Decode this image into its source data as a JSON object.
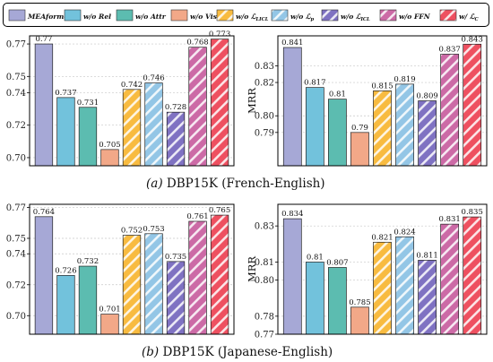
{
  "colors": {
    "MEAformer": "#a6a8d6",
    "w/o Rel": "#72c2dc",
    "w/o Attr": "#5cbcb0",
    "w/o Vis": "#f2a888",
    "w/o L_LICL": "#f8bb40",
    "w/o L_p": "#93c6e6",
    "w/o L_ICL": "#7f72c2",
    "w/o FFN": "#cc6aa6",
    "w/ L_C": "#ee5060"
  },
  "legend": {
    "items": [
      {
        "key": "MEAformer",
        "label": "MEAformer",
        "sub": "",
        "hatched": false
      },
      {
        "key": "w/o Rel",
        "label": "w/o Rel",
        "sub": "",
        "hatched": false
      },
      {
        "key": "w/o Attr",
        "label": "w/o Attr",
        "sub": "",
        "hatched": false
      },
      {
        "key": "w/o Vis",
        "label": "w/o Vis",
        "sub": "",
        "hatched": false
      },
      {
        "key": "w/o L_LICL",
        "label": "w/o ℒ",
        "sub": "LICL",
        "hatched": true
      },
      {
        "key": "w/o L_p",
        "label": "w/o ℒ",
        "sub": "p",
        "hatched": true
      },
      {
        "key": "w/o L_ICL",
        "label": "w/o ℒ",
        "sub": "ICL",
        "hatched": true
      },
      {
        "key": "w/o FFN",
        "label": "w/o FFN",
        "sub": "",
        "hatched": true
      },
      {
        "key": "w/ L_C",
        "label": "w/ ℒ",
        "sub": "C",
        "hatched": true
      }
    ]
  },
  "captions": {
    "a": {
      "label": "(a)",
      "text": "DBP15K (French-English)"
    },
    "b": {
      "label": "(b)",
      "text": "DBP15K (Japanese-English)"
    }
  },
  "chart_data": [
    {
      "type": "bar",
      "panel": "a-left",
      "ylabel": "",
      "ylim": [
        0.695,
        0.775
      ],
      "yticks": [
        0.7,
        0.72,
        0.74,
        0.75,
        0.77
      ],
      "categories": [
        "MEAformer",
        "w/o Rel",
        "w/o Attr",
        "w/o Vis",
        "w/o L_LICL",
        "w/o L_p",
        "w/o L_ICL",
        "w/o FFN",
        "w/ L_C"
      ],
      "values": [
        0.77,
        0.737,
        0.731,
        0.705,
        0.742,
        0.746,
        0.728,
        0.768,
        0.773
      ],
      "value_labels": [
        "0.77",
        "0.737",
        "0.731",
        "0.705",
        "0.742",
        "0.746",
        "0.728",
        "0.768",
        "0.773"
      ]
    },
    {
      "type": "bar",
      "panel": "a-right",
      "ylabel": "MRR",
      "ylim": [
        0.77,
        0.848
      ],
      "yticks": [
        0.79,
        0.8,
        0.82,
        0.83
      ],
      "categories": [
        "MEAformer",
        "w/o Rel",
        "w/o Attr",
        "w/o Vis",
        "w/o L_LICL",
        "w/o L_p",
        "w/o L_ICL",
        "w/o FFN",
        "w/ L_C"
      ],
      "values": [
        0.841,
        0.817,
        0.81,
        0.79,
        0.815,
        0.819,
        0.809,
        0.837,
        0.843
      ],
      "value_labels": [
        "0.841",
        "0.817",
        "0.81",
        "0.79",
        "0.815",
        "0.819",
        "0.809",
        "0.837",
        "0.843"
      ]
    },
    {
      "type": "bar",
      "panel": "b-left",
      "ylabel": "",
      "ylim": [
        0.688,
        0.772
      ],
      "yticks": [
        0.7,
        0.72,
        0.74,
        0.75,
        0.77
      ],
      "categories": [
        "MEAformer",
        "w/o Rel",
        "w/o Attr",
        "w/o Vis",
        "w/o L_LICL",
        "w/o L_p",
        "w/o L_ICL",
        "w/o FFN",
        "w/ L_C"
      ],
      "values": [
        0.764,
        0.726,
        0.732,
        0.701,
        0.752,
        0.753,
        0.735,
        0.761,
        0.765
      ],
      "value_labels": [
        "0.764",
        "0.726",
        "0.732",
        "0.701",
        "0.752",
        "0.753",
        "0.735",
        "0.761",
        "0.765"
      ]
    },
    {
      "type": "bar",
      "panel": "b-right",
      "ylabel": "MRR",
      "ylim": [
        0.77,
        0.842
      ],
      "yticks": [
        0.77,
        0.78,
        0.8,
        0.81,
        0.83
      ],
      "categories": [
        "MEAformer",
        "w/o Rel",
        "w/o Attr",
        "w/o Vis",
        "w/o L_LICL",
        "w/o L_p",
        "w/o L_ICL",
        "w/o FFN",
        "w/ L_C"
      ],
      "values": [
        0.834,
        0.81,
        0.807,
        0.785,
        0.821,
        0.824,
        0.811,
        0.831,
        0.835
      ],
      "value_labels": [
        "0.834",
        "0.81",
        "0.807",
        "0.785",
        "0.821",
        "0.824",
        "0.811",
        "0.831",
        "0.835"
      ]
    }
  ]
}
